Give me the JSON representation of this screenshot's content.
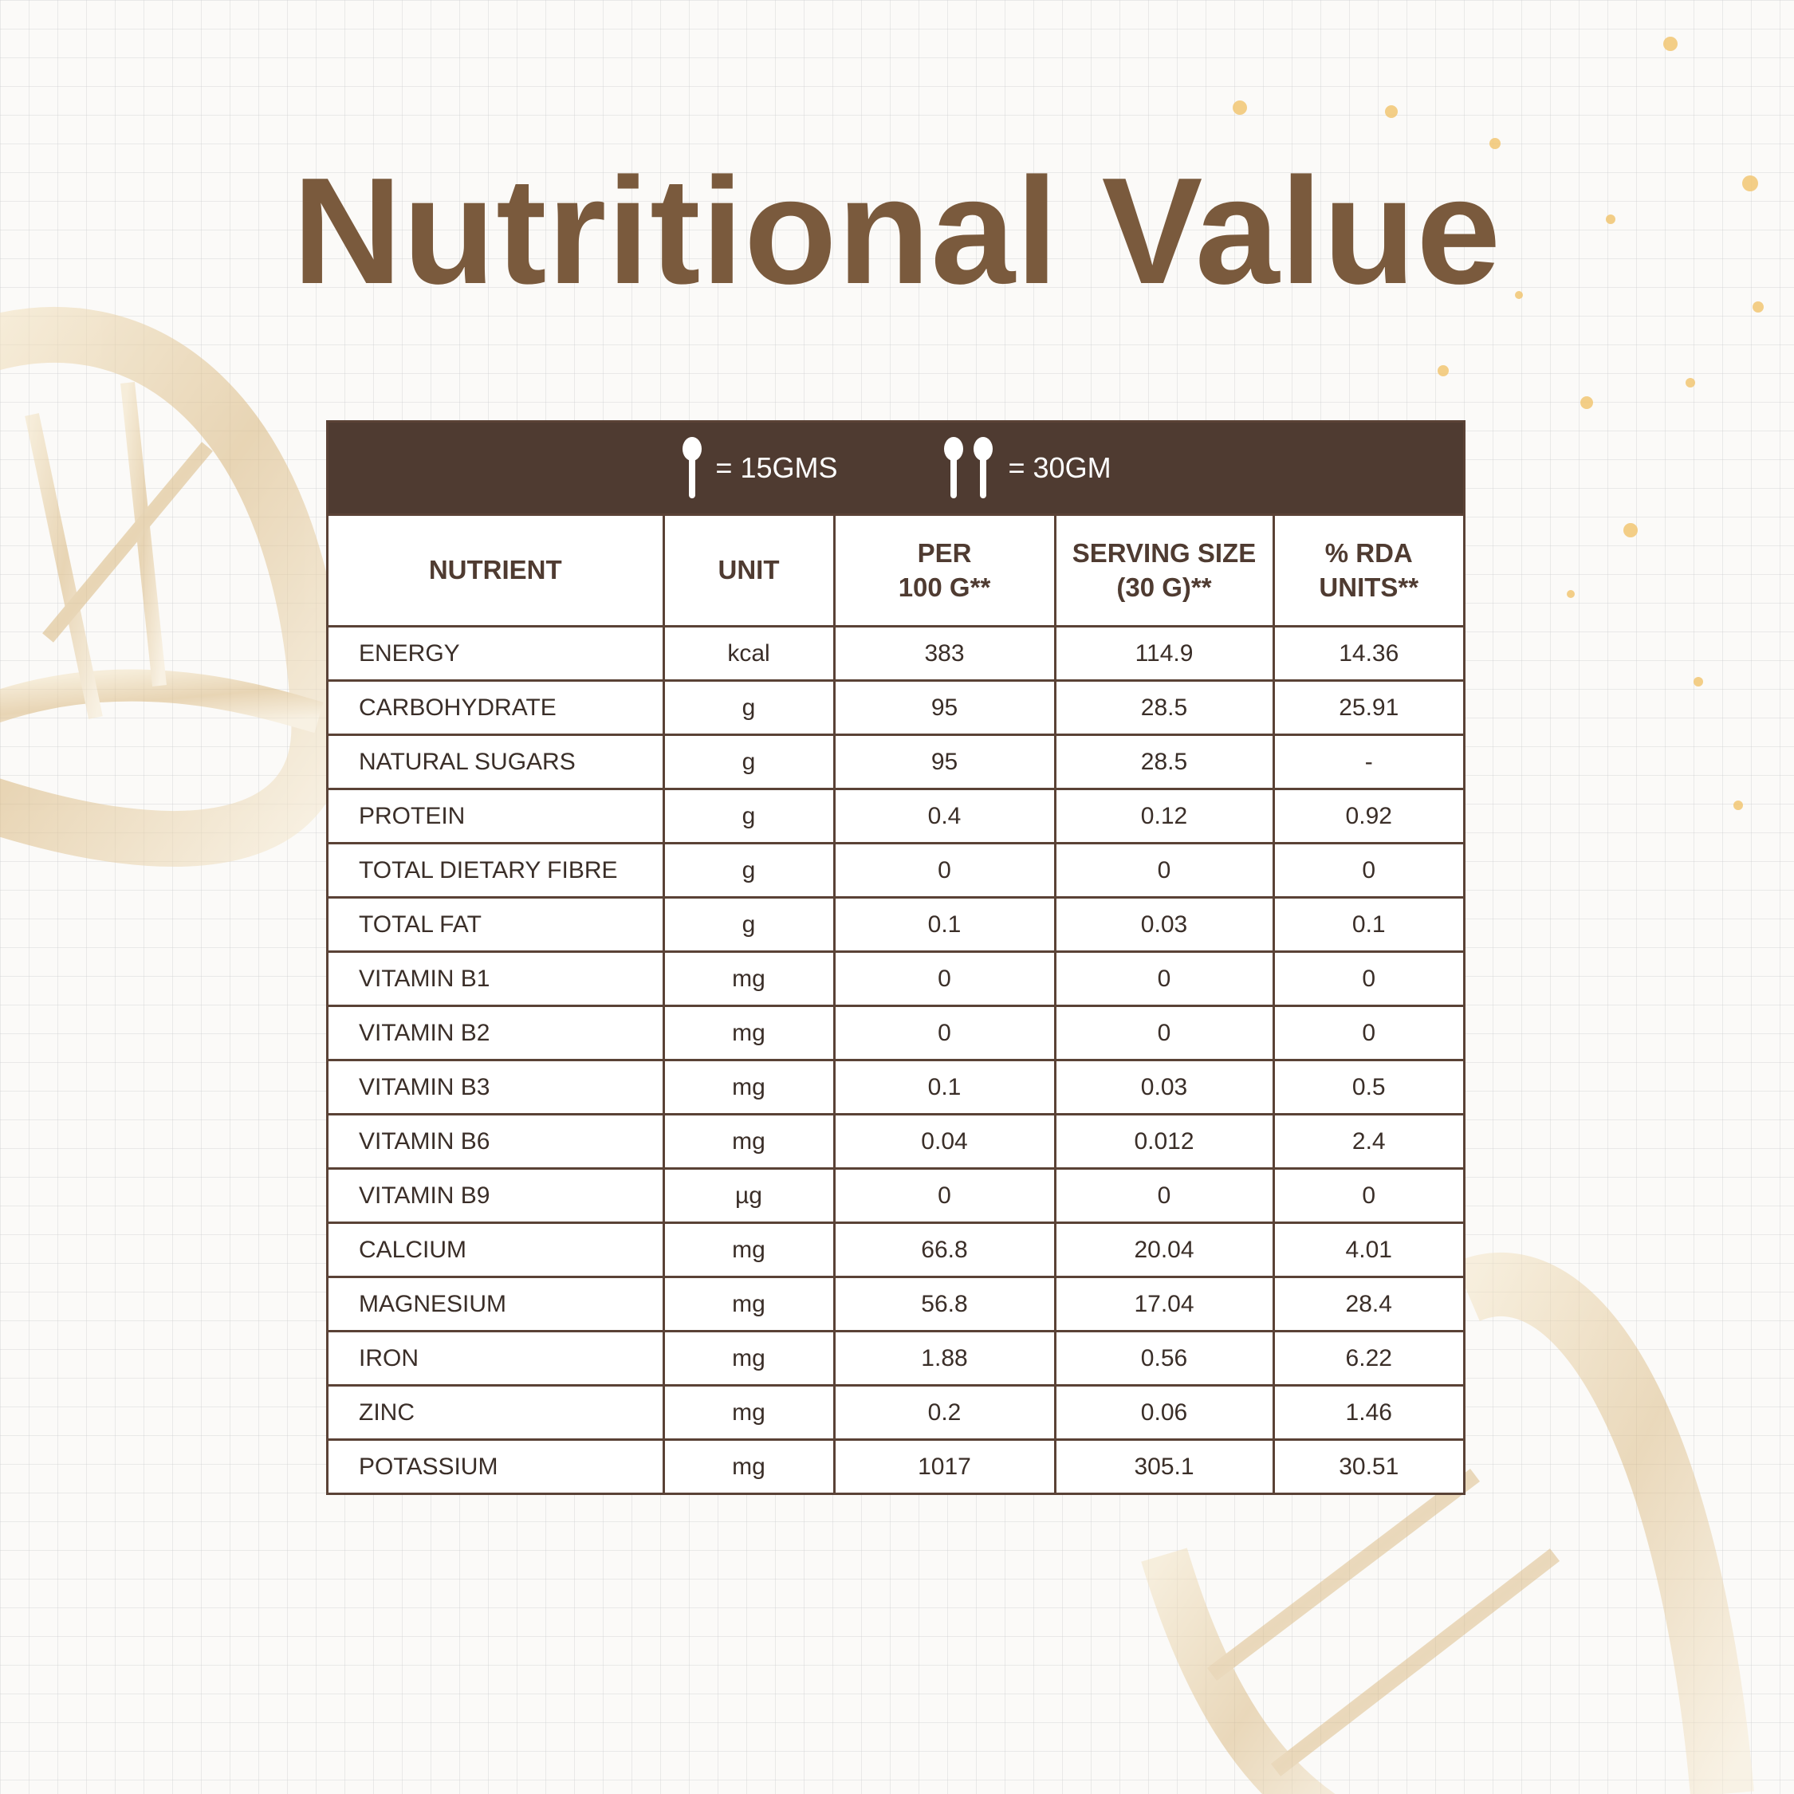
{
  "title": "Nutritional Value",
  "legend": {
    "one_spoon": "= 15GMS",
    "two_spoons": "= 30GM"
  },
  "table": {
    "columns": [
      [
        "NUTRIENT"
      ],
      [
        "UNIT"
      ],
      [
        "PER",
        "100 G**"
      ],
      [
        "SERVING SIZE",
        "(30 G)**"
      ],
      [
        "% RDA",
        "UNITS**"
      ]
    ],
    "rows": [
      [
        "ENERGY",
        "kcal",
        "383",
        "114.9",
        "14.36"
      ],
      [
        "CARBOHYDRATE",
        "g",
        "95",
        "28.5",
        "25.91"
      ],
      [
        "NATURAL SUGARS",
        "g",
        "95",
        "28.5",
        "-"
      ],
      [
        "PROTEIN",
        "g",
        "0.4",
        "0.12",
        "0.92"
      ],
      [
        "TOTAL DIETARY FIBRE",
        "g",
        "0",
        "0",
        "0"
      ],
      [
        "TOTAL FAT",
        "g",
        "0.1",
        "0.03",
        "0.1"
      ],
      [
        "VITAMIN B1",
        "mg",
        "0",
        "0",
        "0"
      ],
      [
        "VITAMIN B2",
        "mg",
        "0",
        "0",
        "0"
      ],
      [
        "VITAMIN B3",
        "mg",
        "0.1",
        "0.03",
        "0.5"
      ],
      [
        "VITAMIN B6",
        "mg",
        "0.04",
        "0.012",
        "2.4"
      ],
      [
        "VITAMIN B9",
        "µg",
        "0",
        "0",
        "0"
      ],
      [
        "CALCIUM",
        "mg",
        "66.8",
        "20.04",
        "4.01"
      ],
      [
        "MAGNESIUM",
        "mg",
        "56.8",
        "17.04",
        "28.4"
      ],
      [
        "IRON",
        "mg",
        "1.88",
        "0.56",
        "6.22"
      ],
      [
        "ZINC",
        "mg",
        "0.2",
        "0.06",
        "1.46"
      ],
      [
        "POTASSIUM",
        "mg",
        "1017",
        "305.1",
        "30.51"
      ]
    ]
  }
}
